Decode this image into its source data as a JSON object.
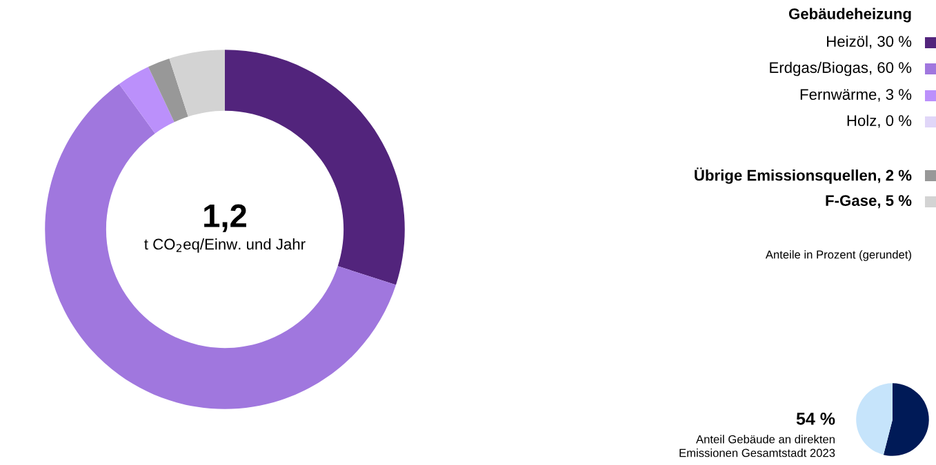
{
  "chart_data": [
    {
      "type": "donut",
      "legend_title": "Gebäudeheizung",
      "legend": "right",
      "categories": [
        "Heizöl, 30 %",
        "Erdgas/Biogas, 60 %",
        "Fernwärme, 3 %",
        "Holz, 0 %",
        "Übrige Emissionsquellen, 2 %",
        "F-Gase, 5 %"
      ],
      "values": [
        30,
        60,
        3,
        0,
        2,
        5
      ],
      "colors": [
        "#52247c",
        "#a077de",
        "#bb90fb",
        "#e0d6f8",
        "#989898",
        "#d3d3d3"
      ],
      "annotations": [
        "1,2",
        "t CO$_{2}$eq/Einw. und Jahr",
        "Anteile in Prozent (gerundet)"
      ]
    },
    {
      "type": "pie",
      "categories": [
        null,
        null
      ],
      "values": [
        54,
        46
      ],
      "colors": [
        "#001a57",
        "#c6e4fb"
      ],
      "annotations": [
        "54 %",
        "Anteil Gebäude an direkten\nEmissionen Gesamtstadt 2023"
      ]
    }
  ]
}
